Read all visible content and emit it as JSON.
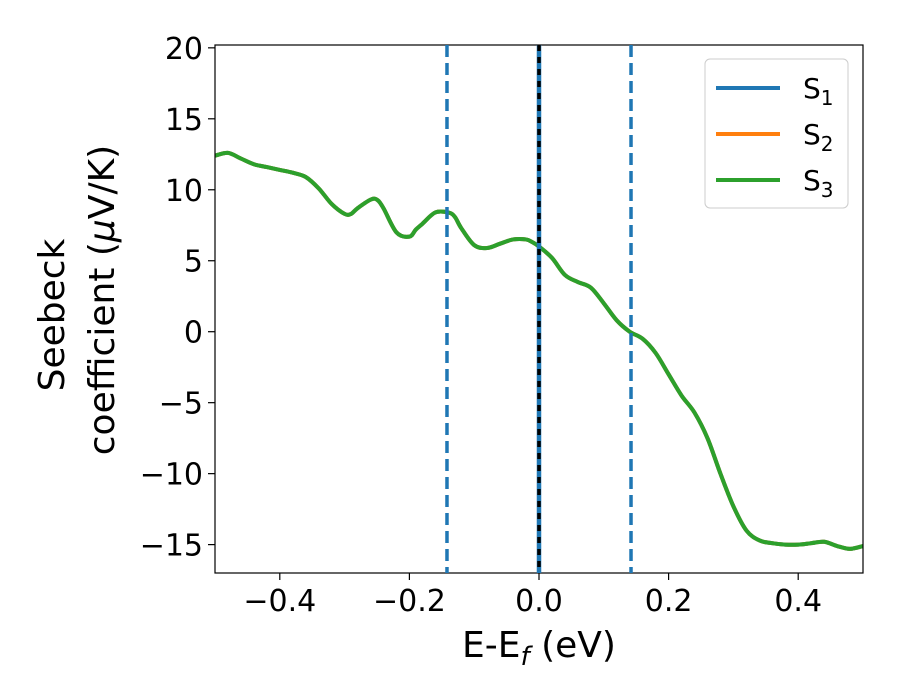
{
  "chart_data": {
    "type": "line",
    "xlabel": "E-E",
    "xlabel_sub": "f",
    "xlabel_unit": " (eV)",
    "ylabel_line1": "Seebeck",
    "ylabel_line2_pre": "coefficient  (",
    "ylabel_mu": "μ",
    "ylabel_line2_post": "V/K)",
    "xlim": [
      -0.5,
      0.5
    ],
    "ylim": [
      -17,
      20.2
    ],
    "xticks": [
      -0.4,
      -0.2,
      0.0,
      0.2,
      0.4
    ],
    "xtick_labels": [
      "−0.4",
      "−0.2",
      "0.0",
      "0.2",
      "0.4"
    ],
    "yticks": [
      -15,
      -10,
      -5,
      0,
      5,
      10,
      15,
      20
    ],
    "ytick_labels": [
      "−15",
      "−10",
      "−5",
      "0",
      "5",
      "10",
      "15",
      "20"
    ],
    "grid": false,
    "legend_position": "top-right",
    "series": [
      {
        "name": "S",
        "sub": "1",
        "color": "#1f77b4",
        "x": [
          -0.5,
          -0.48,
          -0.46,
          -0.44,
          -0.42,
          -0.4,
          -0.38,
          -0.36,
          -0.34,
          -0.32,
          -0.3,
          -0.29,
          -0.28,
          -0.26,
          -0.25,
          -0.24,
          -0.22,
          -0.2,
          -0.19,
          -0.18,
          -0.16,
          -0.14,
          -0.13,
          -0.12,
          -0.1,
          -0.08,
          -0.06,
          -0.04,
          -0.02,
          -0.01,
          0.0,
          0.02,
          0.04,
          0.06,
          0.08,
          0.1,
          0.12,
          0.14,
          0.16,
          0.18,
          0.2,
          0.22,
          0.24,
          0.26,
          0.28,
          0.3,
          0.32,
          0.34,
          0.36,
          0.38,
          0.4,
          0.42,
          0.44,
          0.46,
          0.48,
          0.5
        ],
        "y": [
          12.4,
          12.6,
          12.2,
          11.8,
          11.6,
          11.4,
          11.2,
          10.9,
          10.1,
          9.0,
          8.3,
          8.3,
          8.7,
          9.3,
          9.3,
          8.7,
          7.0,
          6.7,
          7.2,
          7.6,
          8.4,
          8.4,
          8.1,
          7.3,
          6.1,
          5.9,
          6.2,
          6.5,
          6.5,
          6.3,
          6.0,
          5.2,
          4.0,
          3.5,
          3.1,
          2.0,
          0.8,
          0.0,
          -0.5,
          -1.5,
          -3.0,
          -4.5,
          -5.7,
          -7.5,
          -10.0,
          -12.3,
          -14.0,
          -14.7,
          -14.9,
          -15.0,
          -15.0,
          -14.9,
          -14.8,
          -15.1,
          -15.3,
          -15.1
        ]
      },
      {
        "name": "S",
        "sub": "2",
        "color": "#ff7f0e",
        "x": [
          -0.5,
          -0.48,
          -0.46,
          -0.44,
          -0.42,
          -0.4,
          -0.38,
          -0.36,
          -0.34,
          -0.32,
          -0.3,
          -0.29,
          -0.28,
          -0.26,
          -0.25,
          -0.24,
          -0.22,
          -0.2,
          -0.19,
          -0.18,
          -0.16,
          -0.14,
          -0.13,
          -0.12,
          -0.1,
          -0.08,
          -0.06,
          -0.04,
          -0.02,
          -0.01,
          0.0,
          0.02,
          0.04,
          0.06,
          0.08,
          0.1,
          0.12,
          0.14,
          0.16,
          0.18,
          0.2,
          0.22,
          0.24,
          0.26,
          0.28,
          0.3,
          0.32,
          0.34,
          0.36,
          0.38,
          0.4,
          0.42,
          0.44,
          0.46,
          0.48,
          0.5
        ],
        "y": [
          12.4,
          12.6,
          12.2,
          11.8,
          11.6,
          11.4,
          11.2,
          10.9,
          10.1,
          9.0,
          8.3,
          8.3,
          8.7,
          9.3,
          9.3,
          8.7,
          7.0,
          6.7,
          7.2,
          7.6,
          8.4,
          8.4,
          8.1,
          7.3,
          6.1,
          5.9,
          6.2,
          6.5,
          6.5,
          6.3,
          6.0,
          5.2,
          4.0,
          3.5,
          3.1,
          2.0,
          0.8,
          0.0,
          -0.5,
          -1.5,
          -3.0,
          -4.5,
          -5.7,
          -7.5,
          -10.0,
          -12.3,
          -14.0,
          -14.7,
          -14.9,
          -15.0,
          -15.0,
          -14.9,
          -14.8,
          -15.1,
          -15.3,
          -15.1
        ]
      },
      {
        "name": "S",
        "sub": "3",
        "color": "#2ca02c",
        "x": [
          -0.5,
          -0.48,
          -0.46,
          -0.44,
          -0.42,
          -0.4,
          -0.38,
          -0.36,
          -0.34,
          -0.32,
          -0.3,
          -0.29,
          -0.28,
          -0.26,
          -0.25,
          -0.24,
          -0.22,
          -0.2,
          -0.19,
          -0.18,
          -0.16,
          -0.14,
          -0.13,
          -0.12,
          -0.1,
          -0.08,
          -0.06,
          -0.04,
          -0.02,
          -0.01,
          0.0,
          0.02,
          0.04,
          0.06,
          0.08,
          0.1,
          0.12,
          0.14,
          0.16,
          0.18,
          0.2,
          0.22,
          0.24,
          0.26,
          0.28,
          0.3,
          0.32,
          0.34,
          0.36,
          0.38,
          0.4,
          0.42,
          0.44,
          0.46,
          0.48,
          0.5
        ],
        "y": [
          12.4,
          12.6,
          12.2,
          11.8,
          11.6,
          11.4,
          11.2,
          10.9,
          10.1,
          9.0,
          8.3,
          8.3,
          8.7,
          9.3,
          9.3,
          8.7,
          7.0,
          6.7,
          7.2,
          7.6,
          8.4,
          8.4,
          8.1,
          7.3,
          6.1,
          5.9,
          6.2,
          6.5,
          6.5,
          6.3,
          6.0,
          5.2,
          4.0,
          3.5,
          3.1,
          2.0,
          0.8,
          0.0,
          -0.5,
          -1.5,
          -3.0,
          -4.5,
          -5.7,
          -7.5,
          -10.0,
          -12.3,
          -14.0,
          -14.7,
          -14.9,
          -15.0,
          -15.0,
          -14.9,
          -14.8,
          -15.1,
          -15.3,
          -15.1
        ]
      }
    ],
    "vlines": [
      {
        "x": -0.142,
        "style": "dashed",
        "color": "#1f77b4"
      },
      {
        "x": 0.142,
        "style": "dashed",
        "color": "#1f77b4"
      },
      {
        "x": 0.0,
        "style": "solid",
        "color": "#1f77b4"
      },
      {
        "x": 0.0,
        "style": "dashed",
        "color": "#000000"
      }
    ]
  }
}
